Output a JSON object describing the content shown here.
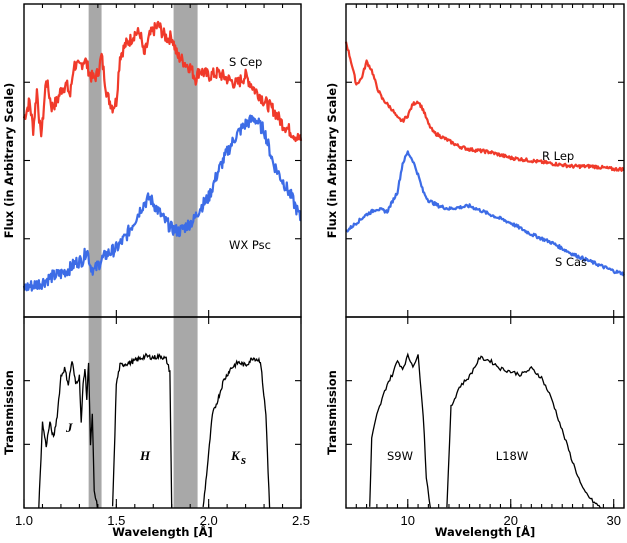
{
  "colors": {
    "red": "#f03a2a",
    "blue": "#3d6ce6",
    "gray_band": "#a8a8a8",
    "black": "#000000"
  },
  "chart_data": [
    {
      "id": "left-flux",
      "type": "line",
      "ylabel": "Flux (in Arbitrary Scale)",
      "xlim": [
        1.0,
        2.5
      ],
      "ylim": [
        0,
        1
      ],
      "shaded_regions": [
        [
          1.35,
          1.42
        ],
        [
          1.81,
          1.94
        ]
      ],
      "series": [
        {
          "name": "S Cep",
          "color": "#f03a2a",
          "x": [
            1.0,
            1.03,
            1.05,
            1.07,
            1.09,
            1.1,
            1.12,
            1.15,
            1.18,
            1.2,
            1.23,
            1.25,
            1.27,
            1.3,
            1.33,
            1.36,
            1.38,
            1.4,
            1.42,
            1.45,
            1.48,
            1.5,
            1.52,
            1.55,
            1.58,
            1.6,
            1.63,
            1.65,
            1.68,
            1.7,
            1.73,
            1.75,
            1.78,
            1.8,
            1.83,
            1.85,
            1.88,
            1.9,
            1.93,
            1.95,
            2.0,
            2.05,
            2.1,
            2.15,
            2.2,
            2.25,
            2.28,
            2.3,
            2.35,
            2.4,
            2.45,
            2.5
          ],
          "y": [
            0.66,
            0.72,
            0.62,
            0.76,
            0.6,
            0.64,
            0.8,
            0.7,
            0.72,
            0.76,
            0.78,
            0.74,
            0.85,
            0.84,
            0.87,
            0.81,
            0.8,
            0.82,
            0.88,
            0.74,
            0.7,
            0.72,
            0.88,
            0.92,
            0.94,
            0.96,
            0.96,
            0.88,
            0.95,
            0.97,
            0.99,
            0.96,
            0.94,
            0.95,
            0.88,
            0.87,
            0.85,
            0.84,
            0.8,
            0.83,
            0.81,
            0.82,
            0.8,
            0.78,
            0.81,
            0.76,
            0.74,
            0.72,
            0.69,
            0.64,
            0.61,
            0.58
          ]
        },
        {
          "name": "WX Psc",
          "color": "#3d6ce6",
          "x": [
            1.0,
            1.05,
            1.1,
            1.15,
            1.2,
            1.25,
            1.28,
            1.32,
            1.34,
            1.36,
            1.38,
            1.4,
            1.42,
            1.45,
            1.5,
            1.55,
            1.6,
            1.64,
            1.68,
            1.72,
            1.76,
            1.8,
            1.84,
            1.88,
            1.92,
            1.95,
            2.0,
            2.05,
            2.1,
            2.15,
            2.2,
            2.25,
            2.28,
            2.3,
            2.35,
            2.4,
            2.45,
            2.5
          ],
          "y": [
            0.06,
            0.07,
            0.08,
            0.1,
            0.11,
            0.13,
            0.15,
            0.16,
            0.2,
            0.14,
            0.12,
            0.14,
            0.16,
            0.18,
            0.2,
            0.24,
            0.3,
            0.35,
            0.38,
            0.34,
            0.3,
            0.27,
            0.26,
            0.28,
            0.3,
            0.34,
            0.38,
            0.47,
            0.54,
            0.6,
            0.64,
            0.66,
            0.63,
            0.62,
            0.5,
            0.44,
            0.38,
            0.3
          ]
        }
      ],
      "annotations": [
        "S Cep",
        "WX Psc"
      ]
    },
    {
      "id": "left-transmission",
      "type": "line",
      "xlabel": "Wavelength [Å]",
      "ylabel": "Transmission",
      "xlim": [
        1.0,
        2.5
      ],
      "ylim": [
        0,
        1
      ],
      "x_ticks": [
        1.0,
        1.5,
        2.0,
        2.5
      ],
      "x_tick_labels": [
        "1.0",
        "1.5",
        "2.0",
        "2.5"
      ],
      "shaded_regions": [
        [
          1.35,
          1.42
        ],
        [
          1.81,
          1.94
        ]
      ],
      "series": [
        {
          "name": "J",
          "x": [
            1.08,
            1.1,
            1.12,
            1.14,
            1.16,
            1.18,
            1.2,
            1.22,
            1.24,
            1.26,
            1.28,
            1.3,
            1.31,
            1.32,
            1.33,
            1.34,
            1.35,
            1.36,
            1.37,
            1.38,
            1.39,
            1.4
          ],
          "y": [
            0.0,
            0.55,
            0.4,
            0.55,
            0.45,
            0.6,
            0.85,
            0.9,
            0.8,
            0.95,
            0.8,
            0.85,
            0.55,
            0.8,
            0.9,
            0.7,
            0.95,
            0.4,
            0.6,
            0.1,
            0.05,
            0.0
          ]
        },
        {
          "name": "H",
          "x": [
            1.48,
            1.5,
            1.52,
            1.55,
            1.58,
            1.62,
            1.66,
            1.7,
            1.74,
            1.77,
            1.79,
            1.8
          ],
          "y": [
            0.0,
            0.8,
            0.92,
            0.93,
            0.94,
            0.96,
            0.98,
            0.97,
            0.98,
            0.96,
            0.88,
            0.0
          ]
        },
        {
          "name": "Ks",
          "x": [
            1.97,
            2.0,
            2.02,
            2.05,
            2.08,
            2.12,
            2.16,
            2.2,
            2.24,
            2.28,
            2.31,
            2.33
          ],
          "y": [
            0.0,
            0.35,
            0.6,
            0.7,
            0.82,
            0.9,
            0.94,
            0.92,
            0.97,
            0.95,
            0.6,
            0.0
          ]
        }
      ],
      "band_labels": [
        "J",
        "H",
        "K",
        "s"
      ]
    },
    {
      "id": "right-flux",
      "type": "line",
      "ylabel": "Flux (in Arbitrary Scale)",
      "xlim": [
        4,
        31
      ],
      "ylim": [
        0,
        1
      ],
      "series": [
        {
          "name": "R Lep",
          "color": "#f03a2a",
          "x": [
            4.0,
            4.5,
            5.0,
            5.5,
            6.0,
            6.5,
            7.0,
            7.5,
            8.0,
            8.5,
            9.0,
            9.5,
            10.0,
            10.5,
            11.0,
            11.5,
            12.0,
            12.5,
            13.0,
            14.0,
            15.0,
            16.0,
            18.0,
            20.0,
            22.0,
            24.0,
            26.0,
            28.0,
            30.0,
            31.0
          ],
          "y": [
            0.93,
            0.86,
            0.78,
            0.8,
            0.86,
            0.83,
            0.77,
            0.73,
            0.71,
            0.69,
            0.66,
            0.65,
            0.67,
            0.71,
            0.72,
            0.69,
            0.64,
            0.61,
            0.6,
            0.58,
            0.56,
            0.55,
            0.54,
            0.52,
            0.51,
            0.5,
            0.49,
            0.49,
            0.48,
            0.48
          ]
        },
        {
          "name": "S Cas",
          "color": "#3d6ce6",
          "x": [
            4.0,
            5.0,
            6.0,
            7.0,
            8.0,
            9.0,
            9.5,
            10.0,
            10.5,
            11.0,
            11.5,
            12.0,
            13.0,
            14.0,
            16.0,
            18.0,
            20.0,
            22.0,
            24.0,
            26.0,
            28.0,
            30.0,
            31.0
          ],
          "y": [
            0.26,
            0.29,
            0.32,
            0.34,
            0.33,
            0.4,
            0.5,
            0.54,
            0.51,
            0.46,
            0.4,
            0.37,
            0.35,
            0.34,
            0.35,
            0.32,
            0.29,
            0.25,
            0.22,
            0.18,
            0.15,
            0.12,
            0.11
          ]
        }
      ],
      "annotations": [
        "R Lep",
        "S Cas"
      ]
    },
    {
      "id": "right-transmission",
      "type": "line",
      "xlabel": "Wavelength [Å]",
      "ylabel": "Transmission",
      "xlim": [
        4,
        31
      ],
      "ylim": [
        0,
        1
      ],
      "x_ticks": [
        10,
        20,
        30
      ],
      "x_tick_labels": [
        "10",
        "20",
        "30"
      ],
      "series": [
        {
          "name": "S9W",
          "x": [
            6.3,
            6.5,
            7.0,
            7.5,
            8.0,
            8.5,
            9.0,
            9.5,
            10.0,
            10.5,
            11.0,
            11.2,
            11.5,
            11.8,
            12.2
          ],
          "y": [
            0.0,
            0.45,
            0.6,
            0.7,
            0.8,
            0.86,
            0.95,
            0.9,
            0.98,
            0.92,
            0.98,
            0.84,
            0.6,
            0.2,
            0.0
          ]
        },
        {
          "name": "L18W",
          "x": [
            13.8,
            14.2,
            15.0,
            16.0,
            17.0,
            18.0,
            19.0,
            20.0,
            21.0,
            22.0,
            23.0,
            24.0,
            25.0,
            26.0,
            27.0,
            28.0,
            28.8
          ],
          "y": [
            0.0,
            0.65,
            0.78,
            0.85,
            0.97,
            0.95,
            0.9,
            0.88,
            0.86,
            0.9,
            0.84,
            0.7,
            0.5,
            0.3,
            0.12,
            0.04,
            0.0
          ]
        }
      ]
    }
  ]
}
